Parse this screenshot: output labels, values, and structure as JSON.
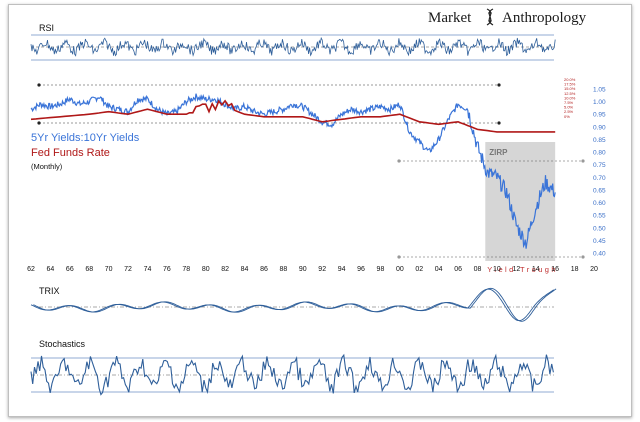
{
  "brand": {
    "title_left": "Market",
    "title_right": "Anthropology",
    "logo_icon": "dna-helix-icon"
  },
  "legend": {
    "ratio_label": "5Yr Yields:10Yr Yields",
    "fed_label": "Fed Funds Rate",
    "period_label": "(Monthly)",
    "ratio_color": "#3a74d8",
    "fed_color": "#b01818"
  },
  "annotations": {
    "zirp": "ZIRP",
    "yield_trough": "Yield Trough"
  },
  "chart_data": [
    {
      "type": "line",
      "title": "RSI",
      "x_domain": [
        1962,
        2020
      ],
      "grid": true,
      "series": [
        {
          "values_summary": "oscillator fluctuating around midline",
          "color": "#2f5f9a"
        }
      ]
    },
    {
      "type": "line",
      "x_domain": [
        1962,
        2020
      ],
      "x_ticks": [
        "62",
        "64",
        "66",
        "68",
        "70",
        "72",
        "74",
        "76",
        "78",
        "80",
        "82",
        "84",
        "86",
        "88",
        "90",
        "92",
        "94",
        "96",
        "98",
        "00",
        "02",
        "04",
        "06",
        "08",
        "10",
        "12",
        "14",
        "16",
        "18",
        "20"
      ],
      "y_right_ticks": [
        "1.05",
        "1.00",
        "0.95",
        "0.90",
        "0.85",
        "0.80",
        "0.75",
        "0.70",
        "0.65",
        "0.60",
        "0.55",
        "0.50",
        "0.45",
        "0.40"
      ],
      "fed_scale_ticks": [
        "20.0%",
        "17.5%",
        "15.0%",
        "12.5%",
        "10.0%",
        "7.5%",
        "5.0%",
        "2.5%",
        "0%"
      ],
      "ylim": [
        0.37,
        1.07
      ],
      "series": [
        {
          "name": "5Yr Yields:10Yr Yields",
          "color": "#3a74d8",
          "x": [
            1962,
            1963,
            1964,
            1965,
            1966,
            1967,
            1968,
            1969,
            1970,
            1971,
            1972,
            1973,
            1974,
            1975,
            1976,
            1977,
            1978,
            1979,
            1980,
            1981,
            1982,
            1983,
            1984,
            1985,
            1986,
            1987,
            1988,
            1989,
            1990,
            1991,
            1992,
            1993,
            1994,
            1995,
            1996,
            1997,
            1998,
            1999,
            2000,
            2001,
            2002,
            2003,
            2004,
            2005,
            2006,
            2007,
            2008,
            2009,
            2010,
            2011,
            2012,
            2013,
            2014,
            2015,
            2016
          ],
          "y": [
            0.97,
            0.99,
            0.98,
            0.99,
            1.01,
            0.99,
            1.0,
            1.02,
            0.98,
            0.97,
            0.96,
            1.01,
            1.01,
            0.97,
            0.95,
            0.96,
            1.0,
            1.02,
            1.01,
            1.01,
            0.99,
            0.97,
            0.98,
            0.96,
            0.95,
            0.96,
            0.97,
            0.99,
            0.98,
            0.95,
            0.92,
            0.91,
            0.95,
            0.97,
            0.96,
            0.97,
            0.98,
            0.97,
            0.99,
            0.88,
            0.84,
            0.8,
            0.85,
            0.93,
            0.99,
            0.97,
            0.82,
            0.72,
            0.7,
            0.64,
            0.51,
            0.44,
            0.58,
            0.68,
            0.64
          ]
        },
        {
          "name": "Fed Funds Rate",
          "color": "#b01818",
          "x": [
            1962,
            1965,
            1968,
            1970,
            1972,
            1974,
            1976,
            1978,
            1980,
            1982,
            1984,
            1986,
            1988,
            1990,
            1992,
            1994,
            1996,
            1998,
            2000,
            2002,
            2004,
            2006,
            2008,
            2010,
            2012,
            2014,
            2016
          ],
          "y": [
            0.93,
            0.94,
            0.95,
            0.96,
            0.95,
            0.97,
            0.95,
            0.95,
            0.98,
            0.98,
            0.95,
            0.94,
            0.94,
            0.94,
            0.92,
            0.93,
            0.94,
            0.94,
            0.95,
            0.92,
            0.91,
            0.92,
            0.89,
            0.88,
            0.88,
            0.88,
            0.88
          ]
        }
      ]
    },
    {
      "type": "line",
      "title": "TRIX",
      "x_domain": [
        1962,
        2020
      ],
      "series": [
        {
          "values_summary": "two smooth oscillator lines with large swing after 2008",
          "color": "#2f5f9a"
        }
      ]
    },
    {
      "type": "line",
      "title": "Stochastics",
      "x_domain": [
        1962,
        2020
      ],
      "series": [
        {
          "values_summary": "oscillator between upper and lower bands",
          "color": "#2f5f9a"
        }
      ]
    }
  ]
}
